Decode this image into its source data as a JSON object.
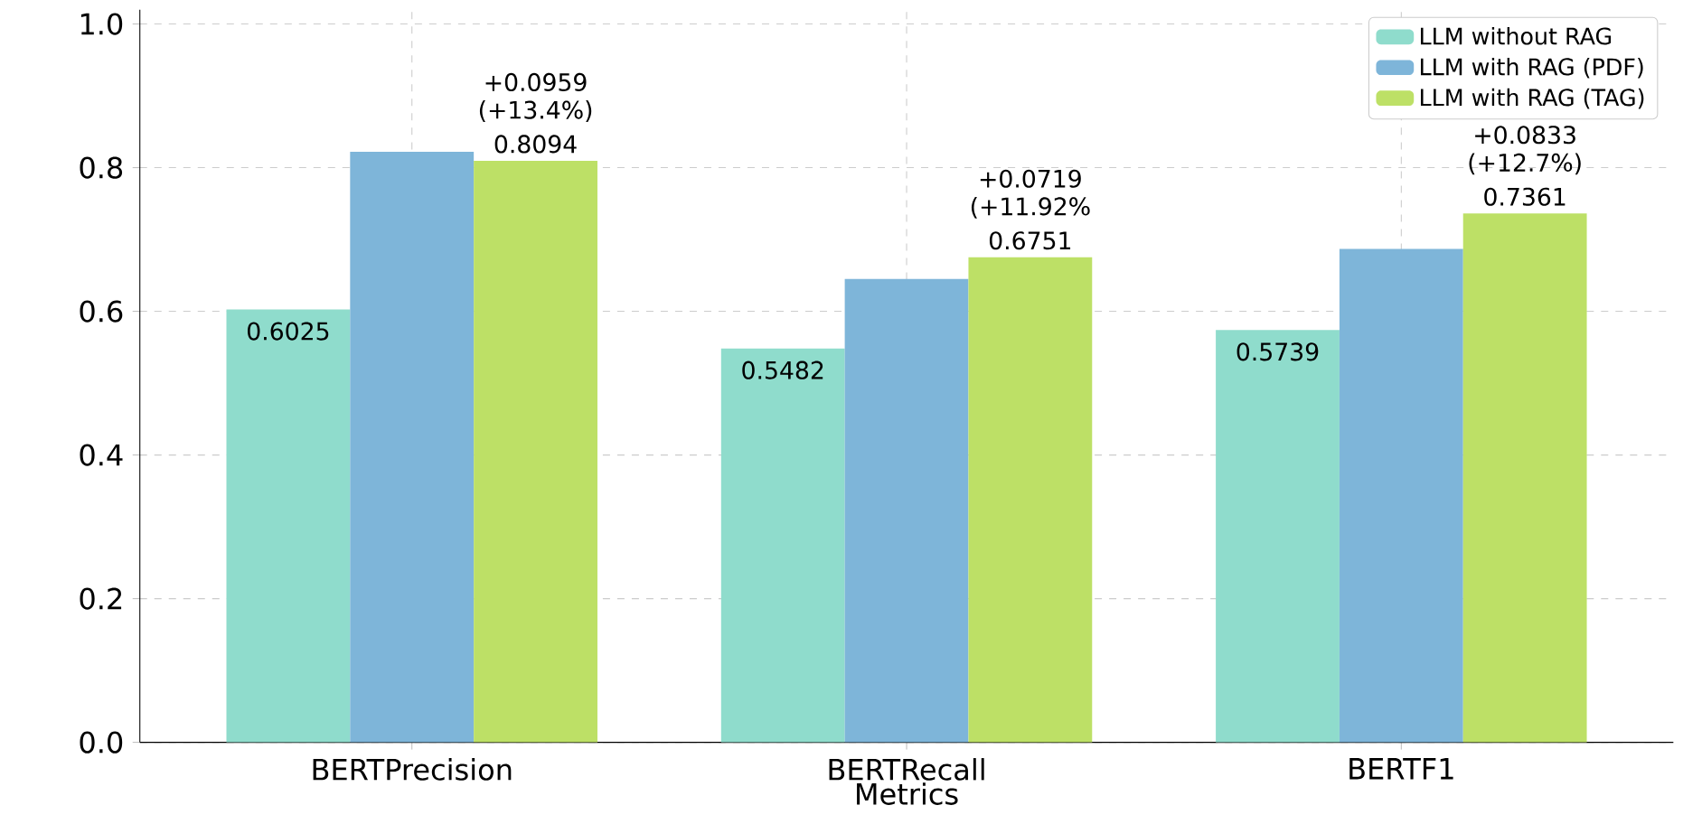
{
  "chart_data": {
    "type": "bar",
    "xlabel": "Metrics",
    "categories": [
      "BERTPrecision",
      "BERTRecall",
      "BERTF1"
    ],
    "series": [
      {
        "name": "LLM without RAG",
        "color": "#8fdccc",
        "values": [
          0.6025,
          0.5482,
          0.5739
        ],
        "value_labels": [
          "0.6025",
          "0.5482",
          "0.5739"
        ]
      },
      {
        "name": "LLM with RAG (PDF)",
        "color": "#7eb5d9",
        "values": [
          0.822,
          0.645,
          0.687
        ]
      },
      {
        "name": "LLM with RAG (TAG)",
        "color": "#bde066",
        "values": [
          0.8094,
          0.6751,
          0.7361
        ],
        "value_labels": [
          "0.8094",
          "0.6751",
          "0.7361"
        ]
      }
    ],
    "ylim": [
      0,
      1.02
    ],
    "yticks": [
      {
        "value": 0,
        "label": "0.0"
      },
      0.2,
      0.4,
      0.6,
      0.8,
      {
        "value": 1,
        "label": "1.0"
      }
    ],
    "grid": true,
    "legend": "top right",
    "annotations": [
      "+0.0959 (+13.4%)",
      "+0.0719 (+11.92%",
      "+0.0833 (+12.7%)"
    ]
  }
}
